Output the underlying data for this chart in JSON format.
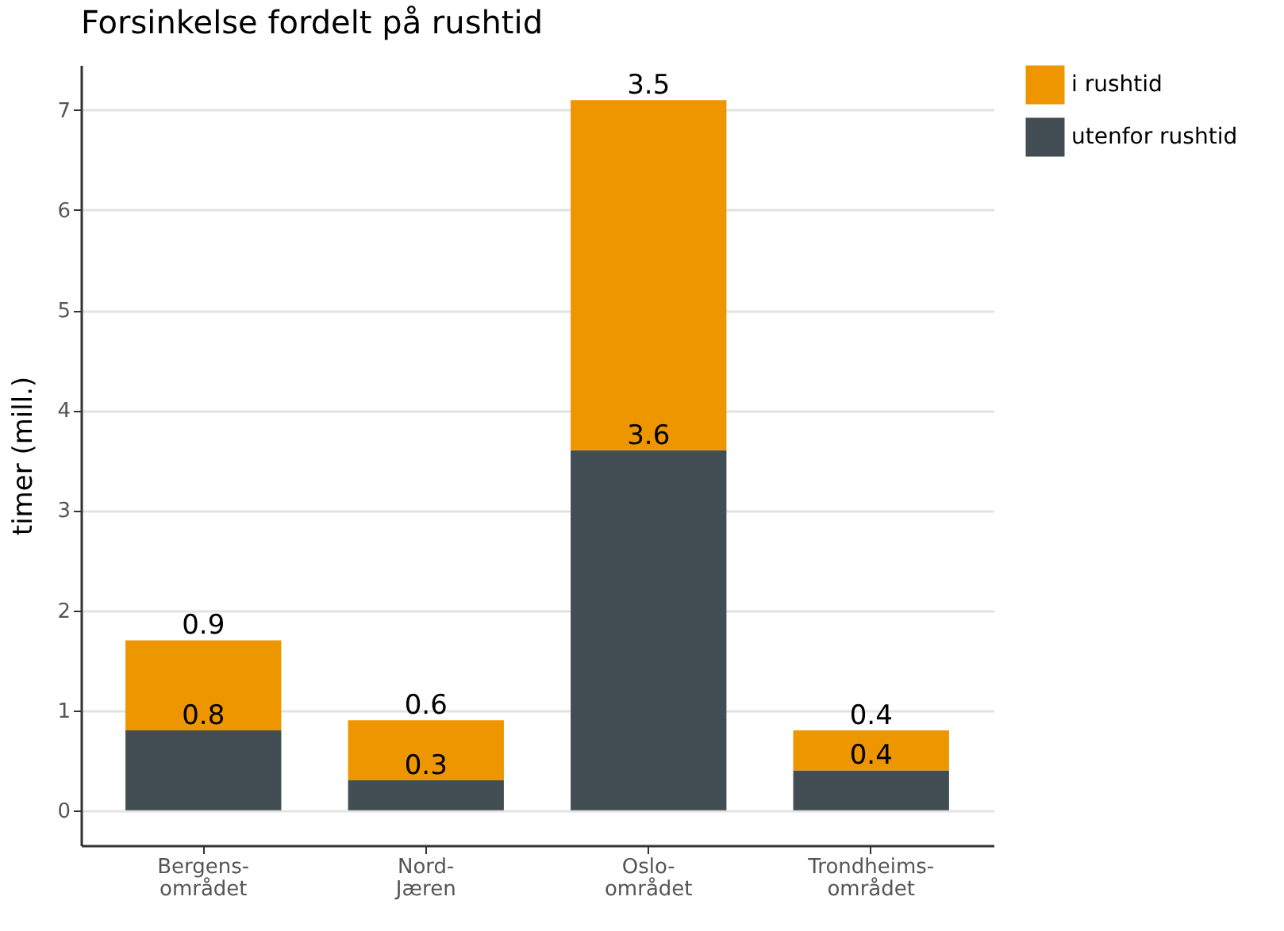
{
  "chart_data": {
    "type": "bar",
    "title": "Forsinkelse fordelt på rushtid",
    "ylabel": "timer (mill.)",
    "categories": [
      "Bergens-området",
      "Nord-Jæren",
      "Oslo-området",
      "Trondheims-området"
    ],
    "series": [
      {
        "name": "utenfor rushtid",
        "color": "#434e54",
        "values": [
          0.8,
          0.3,
          3.6,
          0.4
        ]
      },
      {
        "name": "i rushtid",
        "color": "#ee9600",
        "values": [
          0.9,
          0.6,
          3.5,
          0.4
        ]
      }
    ],
    "stacked": true,
    "data_labels": true,
    "ylim": [
      -0.35,
      7.45
    ],
    "yticks": [
      0,
      1,
      2,
      3,
      4,
      5,
      6,
      7
    ],
    "grid": "y",
    "legend": "right"
  }
}
